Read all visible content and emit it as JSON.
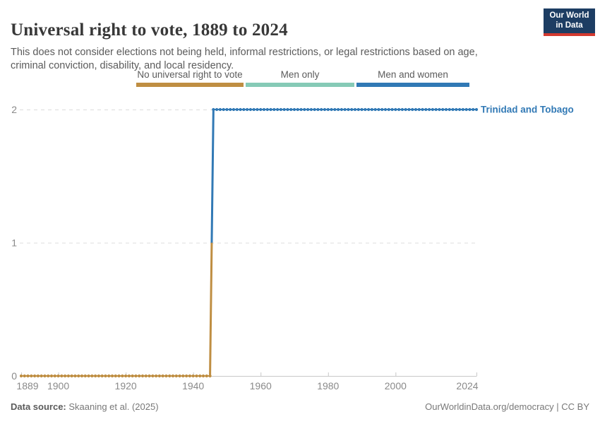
{
  "header": {
    "title": "Universal right to vote, 1889 to 2024",
    "subtitle": "This does not consider elections not being held, informal restrictions, or legal restrictions based on age, criminal conviction, disability, and local residency.",
    "logo": {
      "line1": "Our World",
      "line2": "in Data"
    }
  },
  "legend": {
    "items": [
      {
        "label": "No universal right to vote",
        "color": "#bf8e42"
      },
      {
        "label": "Men only",
        "color": "#86cab6"
      },
      {
        "label": "Men and women",
        "color": "#3179b5"
      }
    ]
  },
  "chart_data": {
    "type": "line",
    "title": "Universal right to vote, 1889 to 2024",
    "entity_label": "Trinidad and Tobago",
    "entity_label_color": "#3179b5",
    "x_ticks": [
      1889,
      1900,
      1920,
      1940,
      1960,
      1980,
      2000,
      2024
    ],
    "y_ticks": [
      0,
      1,
      2
    ],
    "xlim": [
      1889,
      2024
    ],
    "ylim": [
      0,
      2
    ],
    "grid": "horizontal-dashed",
    "legend_position": "top-center",
    "value_labels": {
      "0": "No universal right to vote",
      "1": "Men only",
      "2": "Men and women"
    },
    "series": [
      {
        "name": "Trinidad and Tobago",
        "step_segments": [
          {
            "category": "No universal right to vote",
            "color": "#bf8e42",
            "x_start": 1889,
            "x_end": 1945,
            "value": 0
          },
          {
            "category": "Men and women",
            "color": "#3179b5",
            "x_start": 1946,
            "x_end": 2024,
            "value": 2
          }
        ]
      }
    ]
  },
  "footer": {
    "source_label": "Data source:",
    "source_value": " Skaaning et al. (2025)",
    "credit": "OurWorldinData.org/democracy | CC BY"
  }
}
